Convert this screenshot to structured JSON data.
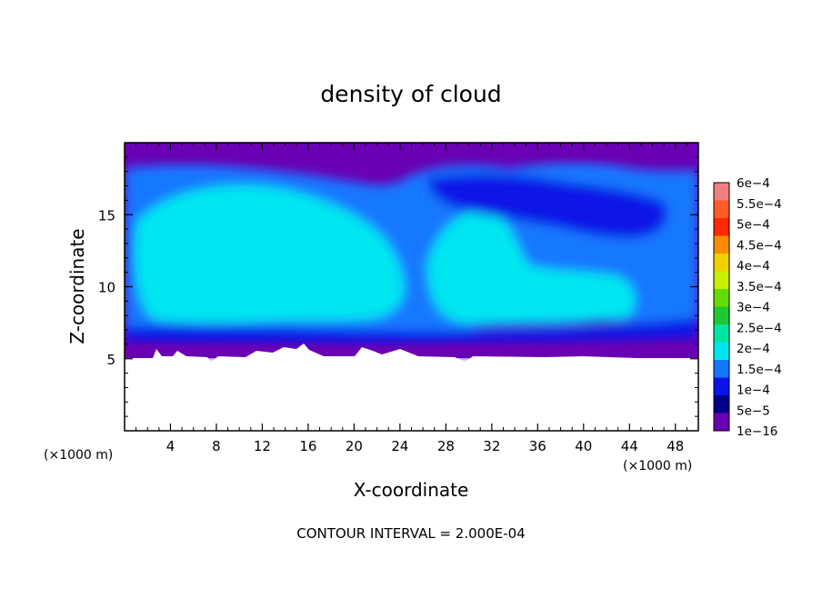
{
  "chart_data": {
    "type": "heatmap",
    "title": "density of cloud",
    "xlabel": "X-coordinate",
    "ylabel": "Z-coordinate",
    "xlim": [
      0,
      50
    ],
    "ylim": [
      0,
      20
    ],
    "x_ticks": [
      4,
      8,
      12,
      16,
      20,
      24,
      28,
      32,
      36,
      40,
      44,
      48
    ],
    "y_ticks": [
      5,
      10,
      15
    ],
    "x_unit": "(×1000 m)",
    "y_unit": "(×1000 m)",
    "colorbar": {
      "labels": [
        "6e−4",
        "5.5e−4",
        "5e−4",
        "4.5e−4",
        "4e−4",
        "3.5e−4",
        "3e−4",
        "2.5e−4",
        "2e−4",
        "1.5e−4",
        "1e−4",
        "5e−5",
        "1e−16"
      ],
      "colors": [
        "#f08080",
        "#ff5a28",
        "#ff2800",
        "#ff8c00",
        "#f0d200",
        "#c8f000",
        "#64dc00",
        "#1ec832",
        "#00e6a0",
        "#00e6f0",
        "#1478ff",
        "#0a14e6",
        "#00008c",
        "#6a00b4"
      ]
    },
    "field_description_levels": {
      "purple_min": "1e-16",
      "ground_top_km": 5
    },
    "contour_note": "CONTOUR INTERVAL = 2.000E-04"
  }
}
